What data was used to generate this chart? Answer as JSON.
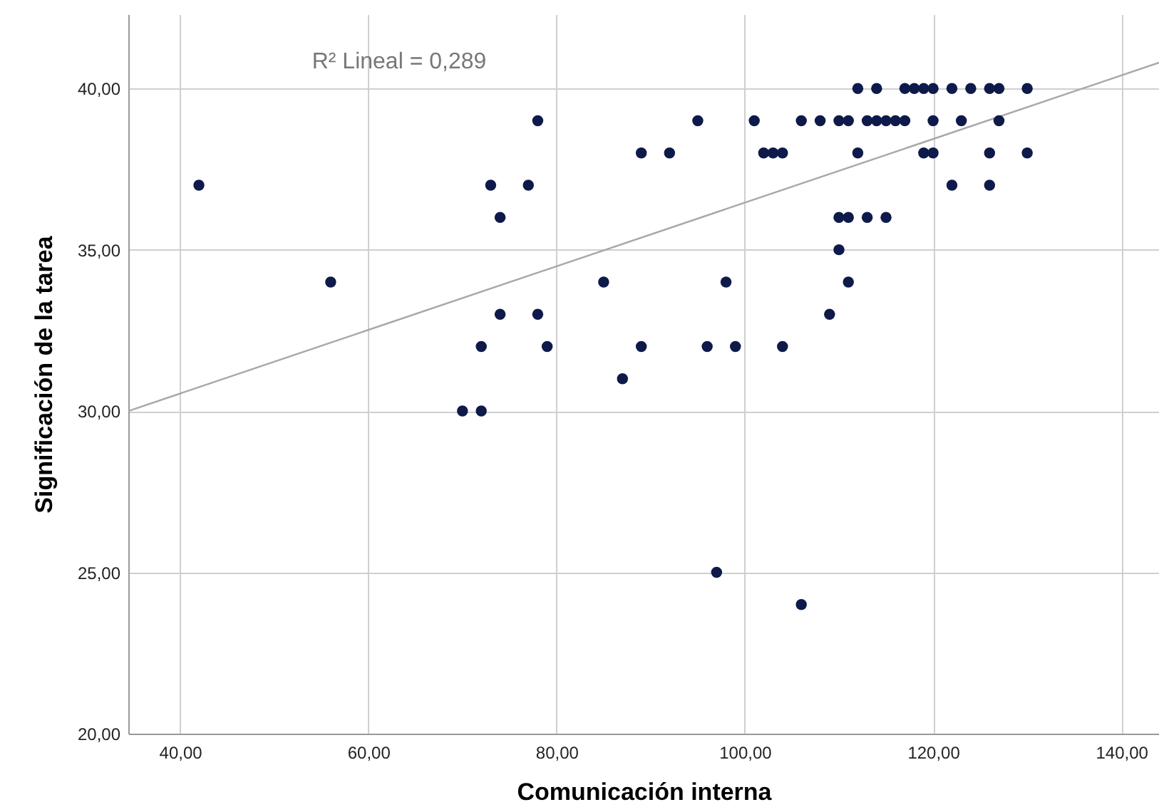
{
  "chart_data": {
    "type": "scatter",
    "xlabel": "Comunicación interna",
    "ylabel": "Significación de la tarea",
    "annotations": [
      "R² Lineal = 0,289"
    ],
    "xlim": [
      34.5,
      144
    ],
    "ylim": [
      20,
      42.3
    ],
    "xticks": [
      {
        "value": 40,
        "label": "40,00"
      },
      {
        "value": 60,
        "label": "60,00"
      },
      {
        "value": 80,
        "label": "80,00"
      },
      {
        "value": 100,
        "label": "100,00"
      },
      {
        "value": 120,
        "label": "120,00"
      },
      {
        "value": 140,
        "label": "140,00"
      }
    ],
    "yticks": [
      {
        "value": 20,
        "label": "20,00"
      },
      {
        "value": 25,
        "label": "25,00"
      },
      {
        "value": 30,
        "label": "30,00"
      },
      {
        "value": 35,
        "label": "35,00"
      },
      {
        "value": 40,
        "label": "40,00"
      }
    ],
    "grid": true,
    "series": [
      {
        "type": "line",
        "color": "#a8a8a8",
        "x": [
          34.5,
          144
        ],
        "values": [
          30.0,
          40.8
        ]
      },
      {
        "marker": "circle",
        "color": "#0d1a4a",
        "x": [
          42,
          56,
          70,
          72,
          72,
          73,
          74,
          74,
          77,
          78,
          78,
          79,
          85,
          87,
          89,
          89,
          92,
          95,
          96,
          97,
          98,
          99,
          101,
          102,
          103,
          104,
          104,
          106,
          106,
          108,
          109,
          110,
          111,
          110,
          111,
          110,
          111,
          112,
          114,
          113,
          114,
          115,
          116,
          117,
          112,
          113,
          115,
          117,
          118,
          119,
          120,
          122,
          124,
          126,
          127,
          130,
          120,
          123,
          127,
          119,
          120,
          126,
          130,
          122,
          126
        ],
        "values": [
          37,
          34,
          30,
          30,
          32,
          37,
          36,
          33,
          37,
          39,
          33,
          32,
          34,
          31,
          38,
          32,
          38,
          39,
          32,
          25,
          34,
          32,
          39,
          38,
          38,
          38,
          32,
          39,
          24,
          39,
          33,
          39,
          39,
          36,
          36,
          35,
          34,
          40,
          40,
          39,
          39,
          39,
          39,
          39,
          38,
          36,
          36,
          40,
          40,
          40,
          40,
          40,
          40,
          40,
          40,
          40,
          39,
          39,
          39,
          38,
          38,
          38,
          38,
          37,
          37
        ]
      }
    ]
  }
}
